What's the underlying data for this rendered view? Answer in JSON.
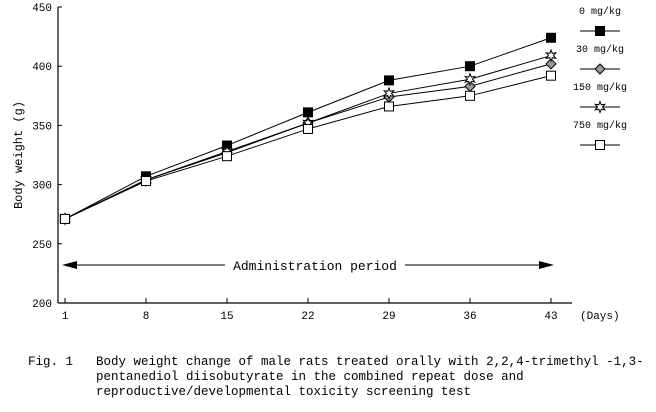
{
  "chart_data": {
    "type": "line",
    "title": "",
    "xlabel": "(Days)",
    "ylabel": "Body weight (g)",
    "x": [
      1,
      8,
      15,
      22,
      29,
      36,
      43
    ],
    "ylim": [
      200,
      450
    ],
    "yticks": [
      200,
      250,
      300,
      350,
      400,
      450
    ],
    "grid": false,
    "legend_position": "right",
    "annotation": "Administration period",
    "series": [
      {
        "name": "0 mg/kg",
        "marker": "filled-square",
        "values": [
          271,
          307,
          333,
          361,
          388,
          400,
          424
        ]
      },
      {
        "name": "30 mg/kg",
        "marker": "diamond",
        "values": [
          271,
          304,
          327,
          352,
          374,
          383,
          402
        ]
      },
      {
        "name": "150 mg/kg",
        "marker": "star",
        "values": [
          271,
          304,
          328,
          352,
          377,
          389,
          409
        ]
      },
      {
        "name": "750 mg/kg",
        "marker": "open-square",
        "values": [
          271,
          303,
          324,
          347,
          366,
          375,
          392
        ]
      }
    ]
  },
  "caption": {
    "label": "Fig. 1",
    "text": "Body weight change of male rats treated orally with 2,2,4-trimethyl -1,3-pentanediol diisobutyrate in the combined repeat dose and reproductive/developmental toxicity screening test"
  }
}
